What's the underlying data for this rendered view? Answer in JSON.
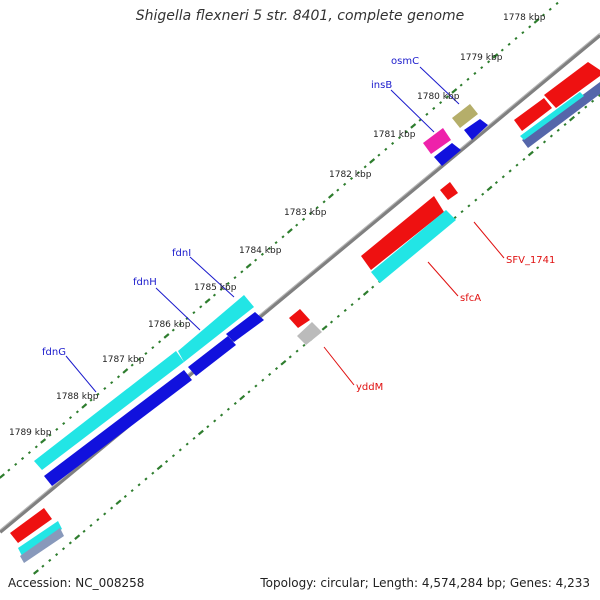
{
  "title": "Shigella flexneri 5 str. 8401, complete genome",
  "footer": {
    "accession": "Accession: NC_008258",
    "summary": "Topology: circular; Length: 4,574,284 bp; Genes: 4,233"
  },
  "ticks": [
    "1778 kbp",
    "1779 kbp",
    "1780 kbp",
    "1781 kbp",
    "1782 kbp",
    "1783 kbp",
    "1784 kbp",
    "1785 kbp",
    "1786 kbp",
    "1787 kbp",
    "1788 kbp",
    "1789 kbp"
  ],
  "gene_labels": {
    "osmC": "osmC",
    "insB": "insB",
    "fdnI": "fdnI",
    "fdnH": "fdnH",
    "fdnG": "fdnG",
    "SFV_1741": "SFV_1741",
    "sfcA": "sfcA",
    "yddM": "yddM"
  },
  "colors": {
    "backbone": "#808080",
    "tick_dots": "#2e7d2e",
    "forward_label": "#1a1acc",
    "reverse_label": "#e01010",
    "red_feature": "#ee1111",
    "cyan_feature": "#22e5e5",
    "blue_feature": "#1111dd",
    "pink_feature": "#ee22aa",
    "olive_feature": "#b5ae6a",
    "gray_feature": "#bbbbbb",
    "slate_feature": "#5566aa"
  }
}
